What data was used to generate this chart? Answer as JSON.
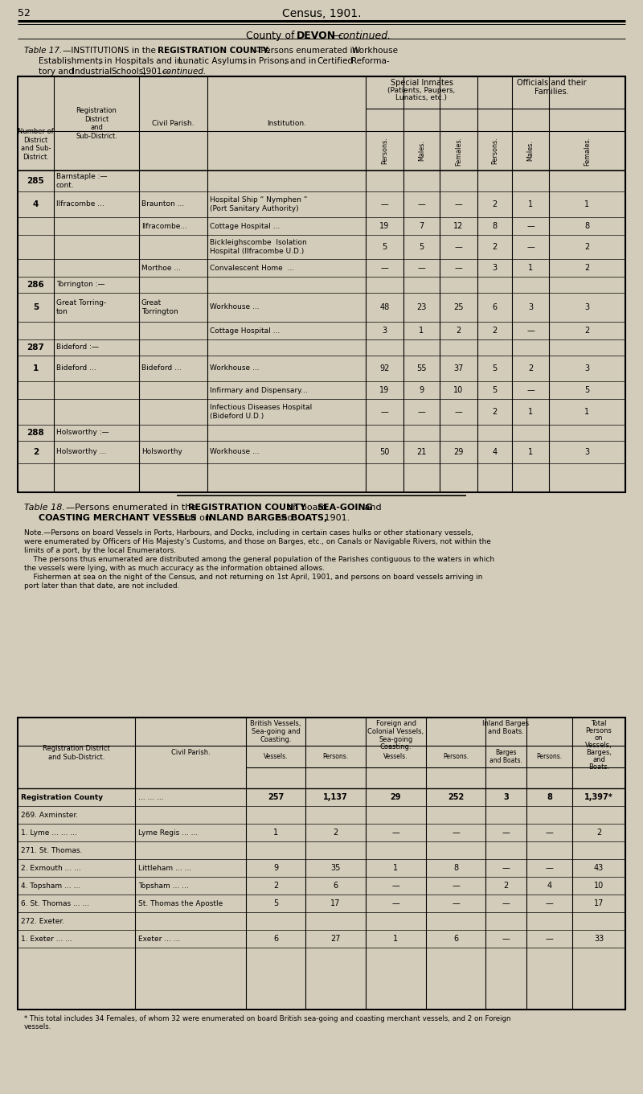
{
  "page_num": "52",
  "top_title": "Census, 1901.",
  "bg_color": "#d4ccba",
  "table17_rows": [
    {
      "num": "285",
      "district": "Barnstaple :—\ncont.",
      "parish": "",
      "institution": "",
      "p1": "",
      "p2": "",
      "p3": "",
      "p4": "",
      "p5": "",
      "p6": ""
    },
    {
      "num": "4",
      "district": "Ilfracombe ...",
      "parish": "Braunton ...",
      "institution": "Hospital Ship “ Nymphen ”\n(Port Sanitary Authority)",
      "p1": "—",
      "p2": "—",
      "p3": "—",
      "p4": "2",
      "p5": "1",
      "p6": "1"
    },
    {
      "num": "",
      "district": "",
      "parish": "Ilfracombe...",
      "institution": "Cottage Hospital ...",
      "p1": "19",
      "p2": "7",
      "p3": "12",
      "p4": "8",
      "p5": "—",
      "p6": "8"
    },
    {
      "num": "",
      "district": "",
      "parish": "",
      "institution": "Bickleighscombe  Isolation\nHospital (Ilfracombe U.D.)",
      "p1": "5",
      "p2": "5",
      "p3": "—",
      "p4": "2",
      "p5": "—",
      "p6": "2"
    },
    {
      "num": "",
      "district": "",
      "parish": "Morthoe ...",
      "institution": "Convalescent Home  ...",
      "p1": "—",
      "p2": "—",
      "p3": "—",
      "p4": "3",
      "p5": "1",
      "p6": "2"
    },
    {
      "num": "286",
      "district": "Torrington :—",
      "parish": "",
      "institution": "",
      "p1": "",
      "p2": "",
      "p3": "",
      "p4": "",
      "p5": "",
      "p6": ""
    },
    {
      "num": "5",
      "district": "Great Torring-\nton",
      "parish": "Great\nTorrington",
      "institution": "Workhouse ...",
      "p1": "48",
      "p2": "23",
      "p3": "25",
      "p4": "6",
      "p5": "3",
      "p6": "3"
    },
    {
      "num": "",
      "district": "",
      "parish": "",
      "institution": "Cottage Hospital ...",
      "p1": "3",
      "p2": "1",
      "p3": "2",
      "p4": "2",
      "p5": "—",
      "p6": "2"
    },
    {
      "num": "287",
      "district": "Bideford :—",
      "parish": "",
      "institution": "",
      "p1": "",
      "p2": "",
      "p3": "",
      "p4": "",
      "p5": "",
      "p6": ""
    },
    {
      "num": "1",
      "district": "Bideford ...",
      "parish": "Bideford ...",
      "institution": "Workhouse ...",
      "p1": "92",
      "p2": "55",
      "p3": "37",
      "p4": "5",
      "p5": "2",
      "p6": "3"
    },
    {
      "num": "",
      "district": "",
      "parish": "",
      "institution": "Infirmary and Dispensary...",
      "p1": "19",
      "p2": "9",
      "p3": "10",
      "p4": "5",
      "p5": "—",
      "p6": "5"
    },
    {
      "num": "",
      "district": "",
      "parish": "",
      "institution": "Infectious Diseases Hospital\n(Bideford U.D.)",
      "p1": "—",
      "p2": "—",
      "p3": "—",
      "p4": "2",
      "p5": "1",
      "p6": "1"
    },
    {
      "num": "288",
      "district": "Holsworthy :—",
      "parish": "",
      "institution": "",
      "p1": "",
      "p2": "",
      "p3": "",
      "p4": "",
      "p5": "",
      "p6": ""
    },
    {
      "num": "2",
      "district": "Holsworthy ...",
      "parish": "Holsworthy",
      "institution": "Workhouse ...",
      "p1": "50",
      "p2": "21",
      "p3": "29",
      "p4": "4",
      "p5": "1",
      "p6": "3"
    }
  ],
  "table18_rows": [
    {
      "district": "Registration County",
      "parish": "... ... ...",
      "bv": "257",
      "bp": "1,137",
      "fv": "29",
      "fp": "252",
      "ib": "3",
      "ip": "8",
      "total": "1,397*"
    },
    {
      "district": "269. Axminster.",
      "parish": "",
      "bv": "",
      "bp": "",
      "fv": "",
      "fp": "",
      "ib": "",
      "ip": "",
      "total": ""
    },
    {
      "district": "1. Lyme ... ... ...",
      "parish": "Lyme Regis ... ...",
      "bv": "1",
      "bp": "2",
      "fv": "—",
      "fp": "—",
      "ib": "—",
      "ip": "—",
      "total": "2"
    },
    {
      "district": "271. St. Thomas.",
      "parish": "",
      "bv": "",
      "bp": "",
      "fv": "",
      "fp": "",
      "ib": "",
      "ip": "",
      "total": ""
    },
    {
      "district": "2. Exmouth ... ...",
      "parish": "Littleham ... ...",
      "bv": "9",
      "bp": "35",
      "fv": "1",
      "fp": "8",
      "ib": "—",
      "ip": "—",
      "total": "43"
    },
    {
      "district": "4. Topsham ... ...",
      "parish": "Topsham ... ...",
      "bv": "2",
      "bp": "6",
      "fv": "—",
      "fp": "—",
      "ib": "2",
      "ip": "4",
      "total": "10"
    },
    {
      "district": "6. St. Thomas ... ...",
      "parish": "St. Thomas the Apostle",
      "bv": "5",
      "bp": "17",
      "fv": "—",
      "fp": "—",
      "ib": "—",
      "ip": "—",
      "total": "17"
    },
    {
      "district": "272. Exeter.",
      "parish": "",
      "bv": "",
      "bp": "",
      "fv": "",
      "fp": "",
      "ib": "",
      "ip": "",
      "total": ""
    },
    {
      "district": "1. Exeter ... ...",
      "parish": "Exeter ... ...",
      "bv": "6",
      "bp": "27",
      "fv": "1",
      "fp": "6",
      "ib": "—",
      "ip": "—",
      "total": "33"
    }
  ],
  "footnote": "* This total includes 34 Females, of whom 32 were enumerated on board British sea-going and coasting merchant vessels, and 2 on Foreign\nvessels."
}
